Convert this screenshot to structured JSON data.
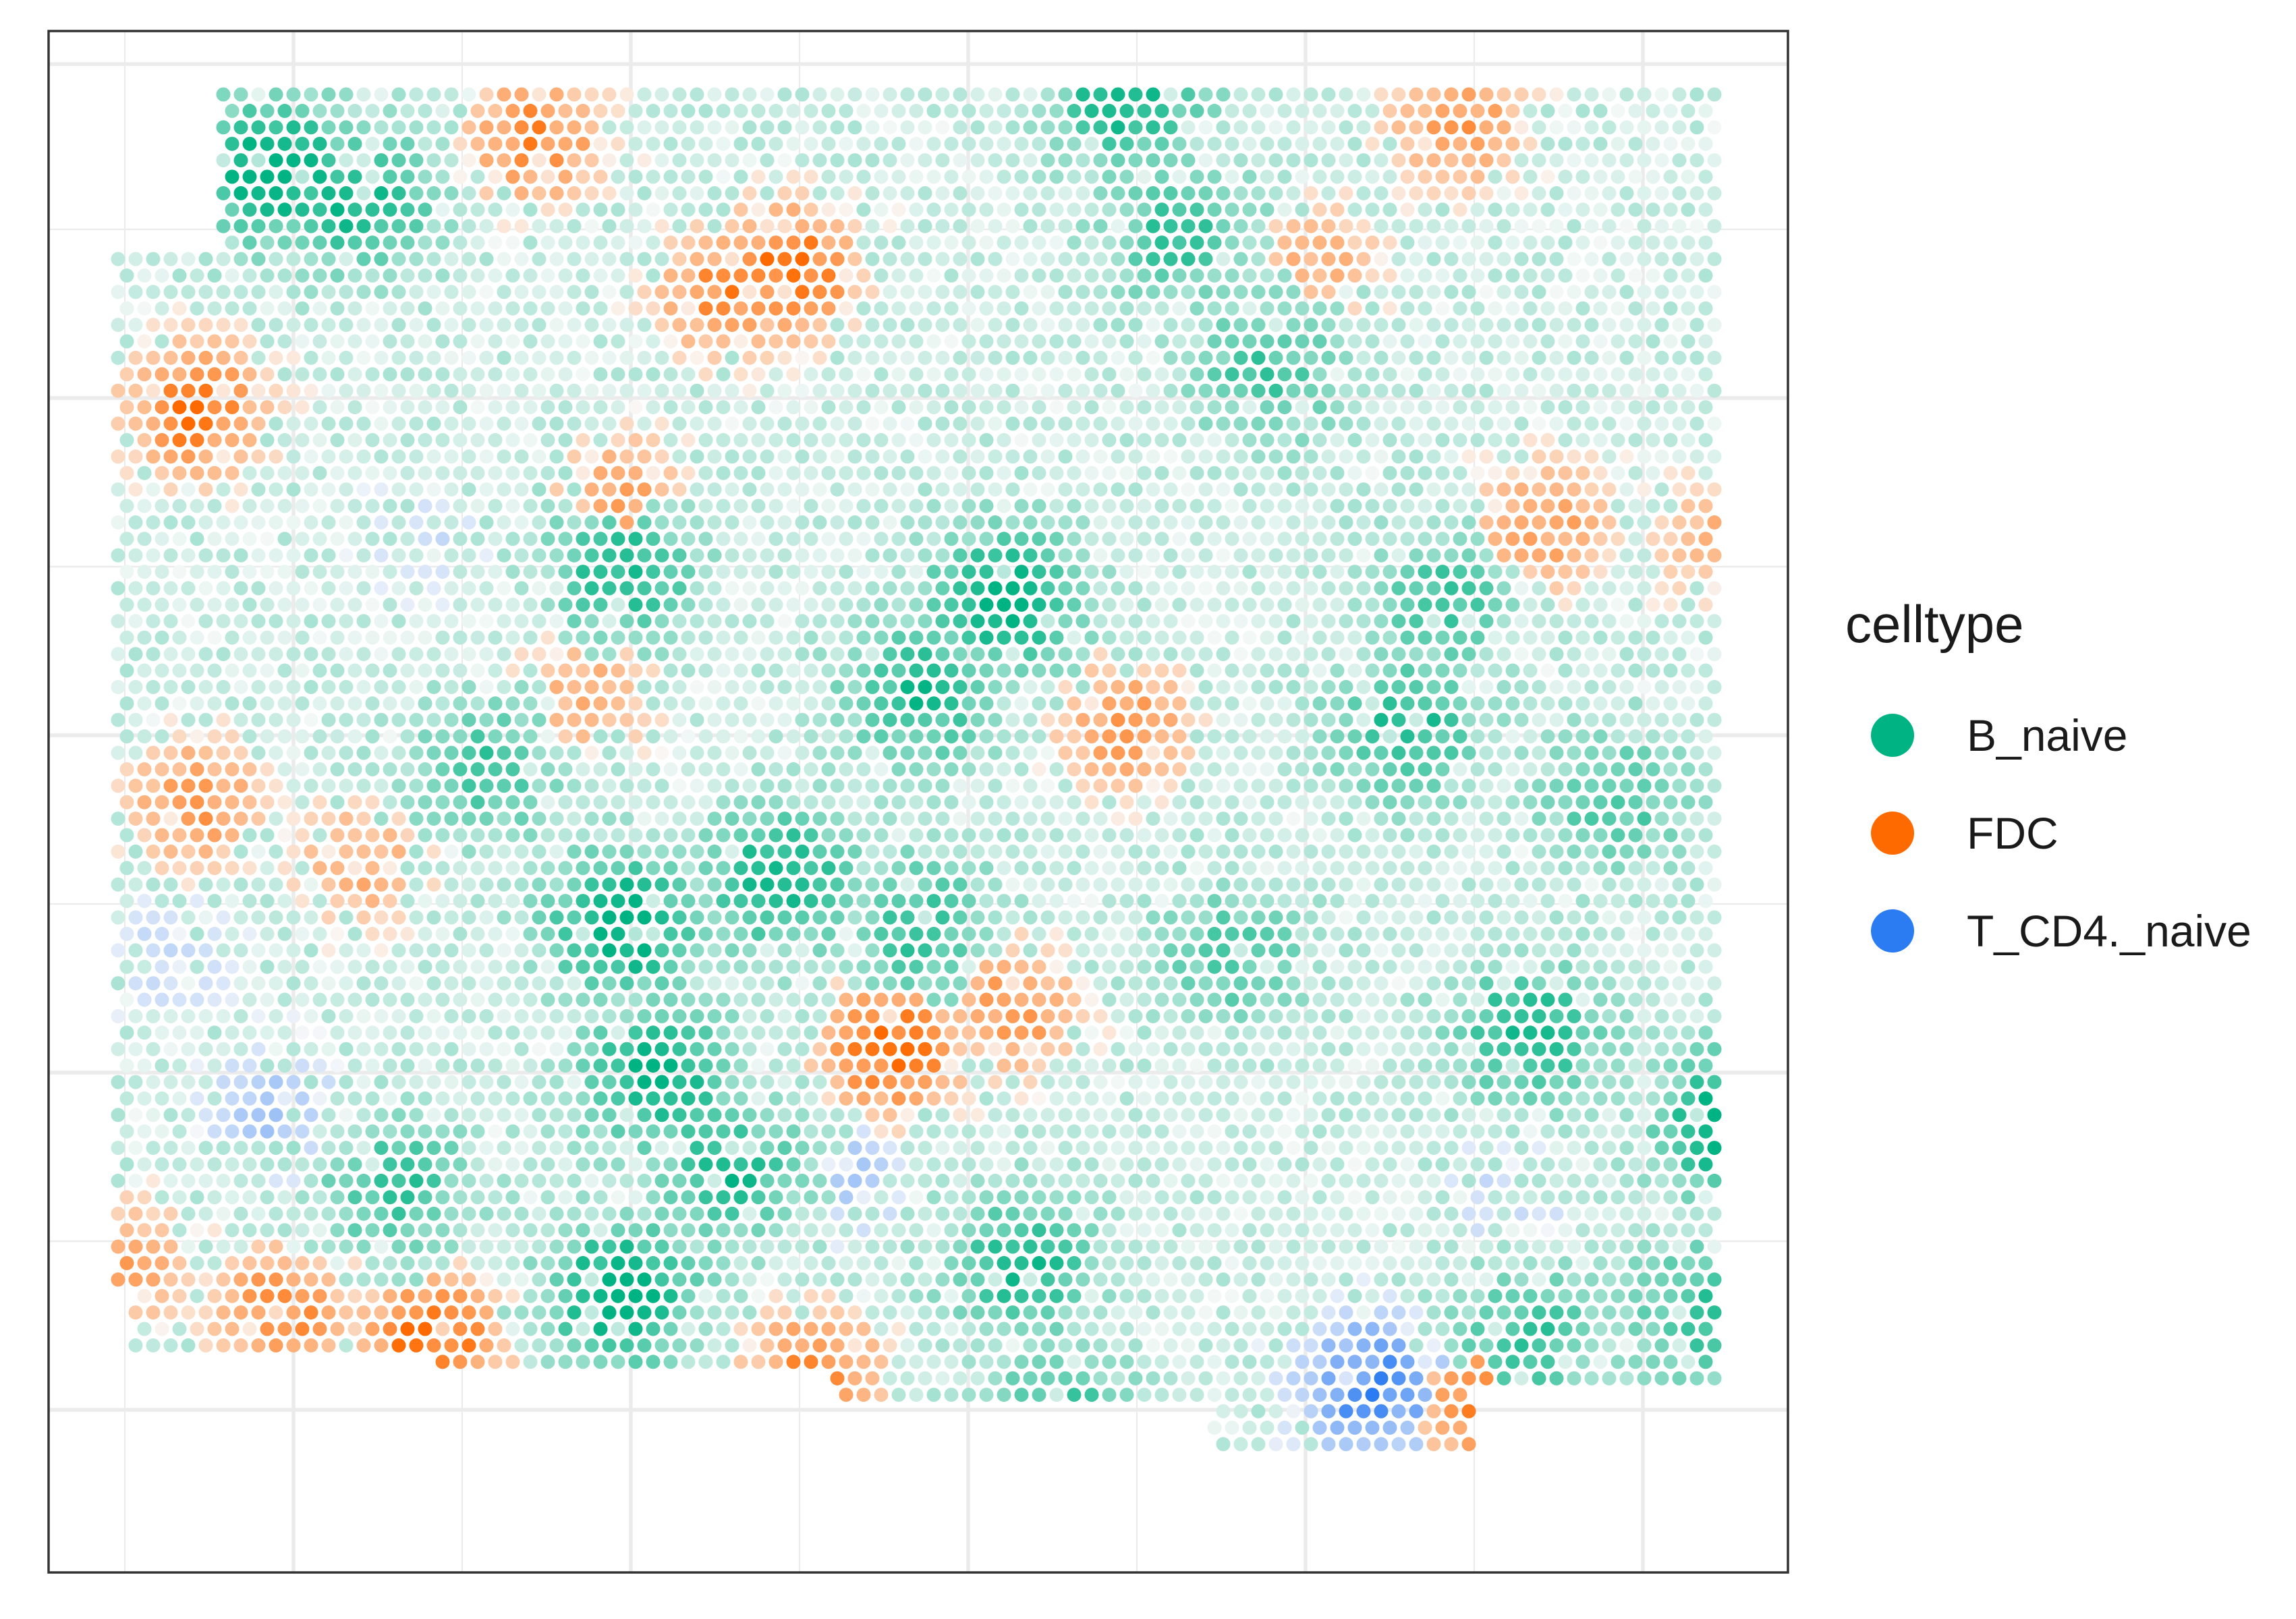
{
  "chart_data": {
    "type": "scatter",
    "title": "",
    "xlabel": "",
    "ylabel": "",
    "xlim": [
      0,
      1
    ],
    "ylim": [
      0,
      1
    ],
    "grid": true,
    "axis_tick_labels": "none",
    "legend_position": "right",
    "legend": {
      "title": "celltype",
      "entries": [
        {
          "name": "B_naive",
          "color": "#00B383"
        },
        {
          "name": "FDC",
          "color": "#FF6A00"
        },
        {
          "name": "T_CD4._naive",
          "color": "#2B7BF2"
        }
      ]
    },
    "hotspots": {
      "B_naive": [
        [
          0.13,
          0.91,
          0.95
        ],
        [
          0.18,
          0.89,
          0.75
        ],
        [
          0.62,
          0.96,
          0.8
        ],
        [
          0.97,
          0.29,
          1.0
        ],
        [
          0.55,
          0.63,
          0.9
        ],
        [
          0.5,
          0.57,
          0.7
        ],
        [
          0.78,
          0.55,
          0.7
        ],
        [
          0.33,
          0.42,
          0.9
        ],
        [
          0.42,
          0.45,
          0.8
        ],
        [
          0.35,
          0.32,
          0.85
        ],
        [
          0.39,
          0.26,
          0.7
        ],
        [
          0.33,
          0.18,
          0.95
        ],
        [
          0.56,
          0.2,
          0.7
        ],
        [
          0.85,
          0.35,
          0.75
        ],
        [
          0.95,
          0.17,
          0.6
        ],
        [
          0.87,
          0.04,
          0.85
        ],
        [
          0.58,
          0.09,
          0.75
        ],
        [
          0.33,
          0.65,
          0.7
        ],
        [
          0.2,
          0.25,
          0.6
        ],
        [
          0.5,
          0.42,
          0.6
        ],
        [
          0.8,
          0.63,
          0.55
        ],
        [
          0.7,
          0.78,
          0.55
        ],
        [
          0.65,
          0.87,
          0.6
        ],
        [
          0.85,
          0.15,
          0.6
        ],
        [
          0.68,
          0.4,
          0.5
        ],
        [
          0.25,
          0.52,
          0.55
        ],
        [
          0.3,
          0.09,
          0.6
        ],
        [
          0.9,
          0.5,
          0.5
        ]
      ],
      "FDC": [
        [
          0.425,
          0.845,
          1.0
        ],
        [
          0.39,
          0.83,
          0.8
        ],
        [
          0.28,
          0.93,
          0.8
        ],
        [
          0.085,
          0.755,
          0.95
        ],
        [
          0.62,
          0.55,
          0.7
        ],
        [
          0.485,
          0.34,
          1.0
        ],
        [
          0.555,
          0.365,
          0.7
        ],
        [
          0.22,
          0.15,
          1.0
        ],
        [
          0.135,
          0.17,
          0.8
        ],
        [
          0.045,
          0.2,
          0.6
        ],
        [
          0.44,
          0.13,
          0.8
        ],
        [
          0.83,
          0.11,
          0.85
        ],
        [
          0.81,
          0.94,
          0.7
        ],
        [
          0.73,
          0.85,
          0.5
        ],
        [
          0.86,
          0.68,
          0.65
        ],
        [
          0.96,
          0.67,
          0.5
        ],
        [
          0.33,
          0.7,
          0.6
        ],
        [
          0.085,
          0.5,
          0.7
        ],
        [
          0.18,
          0.46,
          0.55
        ],
        [
          0.31,
          0.57,
          0.55
        ]
      ],
      "T_CD4._naive": [
        [
          0.76,
          0.12,
          1.0
        ],
        [
          0.13,
          0.3,
          0.45
        ],
        [
          0.46,
          0.26,
          0.4
        ],
        [
          0.07,
          0.4,
          0.3
        ],
        [
          0.84,
          0.24,
          0.3
        ],
        [
          0.22,
          0.67,
          0.25
        ],
        [
          0.77,
          0.07,
          0.35
        ]
      ]
    }
  }
}
